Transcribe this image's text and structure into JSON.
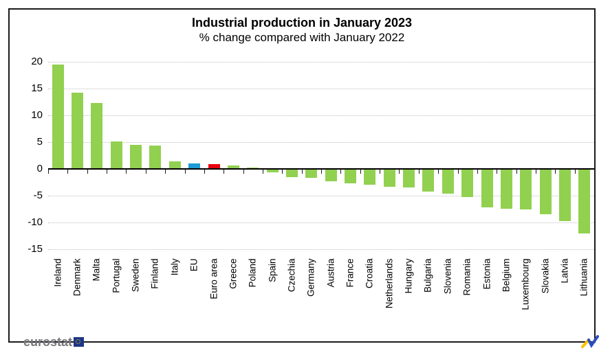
{
  "chart_data": {
    "type": "bar",
    "title": "Industrial production in January 2023",
    "subtitle": "% change compared with January 2022",
    "categories": [
      "Ireland",
      "Denmark",
      "Malta",
      "Portugal",
      "Sweden",
      "Finland",
      "Italy",
      "EU",
      "Euro area",
      "Greece",
      "Poland",
      "Spain",
      "Czechia",
      "Germany",
      "Austria",
      "France",
      "Croatia",
      "Netherlands",
      "Hungary",
      "Bulgaria",
      "Slovenia",
      "Romania",
      "Estonia",
      "Belgium",
      "Luxembourg",
      "Slovakia",
      "Latvia",
      "Lithuania"
    ],
    "values": [
      19.5,
      14.2,
      12.3,
      5.1,
      4.5,
      4.3,
      1.4,
      1.0,
      0.9,
      0.6,
      0.3,
      -0.7,
      -1.5,
      -1.7,
      -2.3,
      -2.7,
      -3.0,
      -3.3,
      -3.4,
      -4.2,
      -4.6,
      -5.3,
      -7.2,
      -7.4,
      -7.6,
      -8.5,
      -9.8,
      -12.0
    ],
    "unit": "%",
    "ylim": [
      -15,
      20
    ],
    "yticks": [
      20,
      15,
      10,
      5,
      0,
      -5,
      -10,
      -15
    ],
    "grid": "horizontal-dotted",
    "legend": "none",
    "colors": {
      "default_bar": "#92d050",
      "highlights": {
        "EU": "#1e9bd7",
        "Euro area": "#e8000d"
      },
      "gridline": "#bdbdbd",
      "axis": "#000000"
    }
  },
  "footer": {
    "brand": "eurostat",
    "eu_flag_icon": "eu-flag-icon",
    "trend_icon": "trend-line-icon",
    "trend_colors": {
      "yellow": "#fdc300",
      "blue": "#2a4fc0"
    }
  }
}
